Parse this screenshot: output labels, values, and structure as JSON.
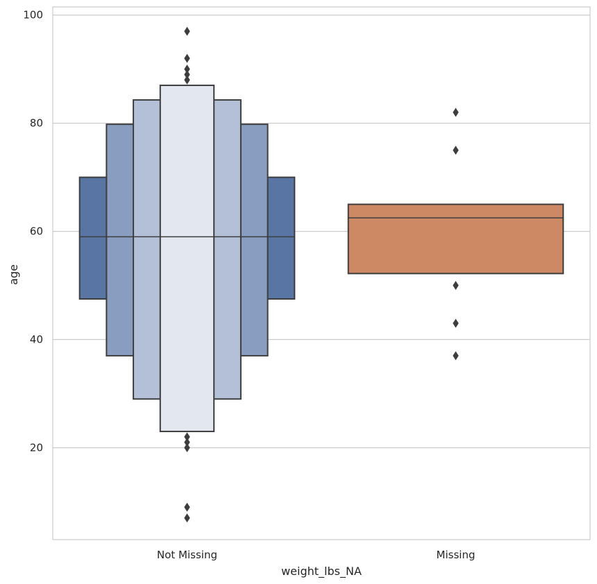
{
  "chart_data": {
    "type": "boxen",
    "xlabel": "weight_lbs_NA",
    "ylabel": "age",
    "categories": [
      "Not Missing",
      "Missing"
    ],
    "ylim": [
      3,
      101.5
    ],
    "yticks": [
      20,
      40,
      60,
      80,
      100
    ],
    "grid": true,
    "series": [
      {
        "category": "Not Missing",
        "color": "#4c72b0",
        "median": 59,
        "levels": [
          {
            "low": 47.5,
            "high": 70,
            "fill": "#5875a4"
          },
          {
            "low": 37,
            "high": 79.8,
            "fill": "#889dbf"
          },
          {
            "low": 29,
            "high": 84.3,
            "fill": "#b3c0d8"
          },
          {
            "low": 23,
            "high": 87,
            "fill": "#e2e7f0"
          }
        ],
        "outliers": [
          97,
          92,
          90,
          89,
          88,
          22,
          21,
          20,
          9,
          7
        ]
      },
      {
        "category": "Missing",
        "color": "#dd8452",
        "median": 62.5,
        "levels": [
          {
            "low": 52.2,
            "high": 65,
            "fill": "#cc8963"
          }
        ],
        "outliers": [
          82,
          75,
          50,
          43,
          37
        ]
      }
    ]
  }
}
